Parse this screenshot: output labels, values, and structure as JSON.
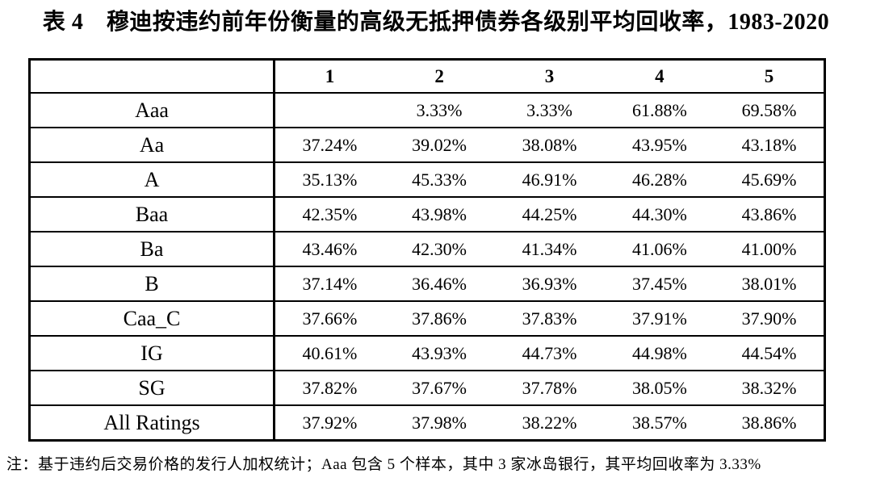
{
  "page": {
    "background_color": "#ffffff",
    "text_color": "#000000",
    "border_color": "#000000"
  },
  "title": "表 4　穆迪按违约前年份衡量的高级无抵押债券各级别平均回收率，1983-2020",
  "table": {
    "columns": [
      "",
      "1",
      "2",
      "3",
      "4",
      "5"
    ],
    "rows": [
      {
        "label": "Aaa",
        "values": [
          "",
          "3.33%",
          "3.33%",
          "61.88%",
          "69.58%"
        ]
      },
      {
        "label": "Aa",
        "values": [
          "37.24%",
          "39.02%",
          "38.08%",
          "43.95%",
          "43.18%"
        ]
      },
      {
        "label": "A",
        "values": [
          "35.13%",
          "45.33%",
          "46.91%",
          "46.28%",
          "45.69%"
        ]
      },
      {
        "label": "Baa",
        "values": [
          "42.35%",
          "43.98%",
          "44.25%",
          "44.30%",
          "43.86%"
        ]
      },
      {
        "label": "Ba",
        "values": [
          "43.46%",
          "42.30%",
          "41.34%",
          "41.06%",
          "41.00%"
        ]
      },
      {
        "label": "B",
        "values": [
          "37.14%",
          "36.46%",
          "36.93%",
          "37.45%",
          "38.01%"
        ]
      },
      {
        "label": "Caa_C",
        "values": [
          "37.66%",
          "37.86%",
          "37.83%",
          "37.91%",
          "37.90%"
        ]
      },
      {
        "label": "IG",
        "values": [
          "40.61%",
          "43.93%",
          "44.73%",
          "44.98%",
          "44.54%"
        ]
      },
      {
        "label": "SG",
        "values": [
          "37.82%",
          "37.67%",
          "37.78%",
          "38.05%",
          "38.32%"
        ]
      },
      {
        "label": "All Ratings",
        "values": [
          "37.92%",
          "37.98%",
          "38.22%",
          "38.57%",
          "38.86%"
        ]
      }
    ]
  },
  "note": "注：基于违约后交易价格的发行人加权统计；Aaa 包含 5 个样本，其中 3 家冰岛银行，其平均回收率为 3.33%"
}
